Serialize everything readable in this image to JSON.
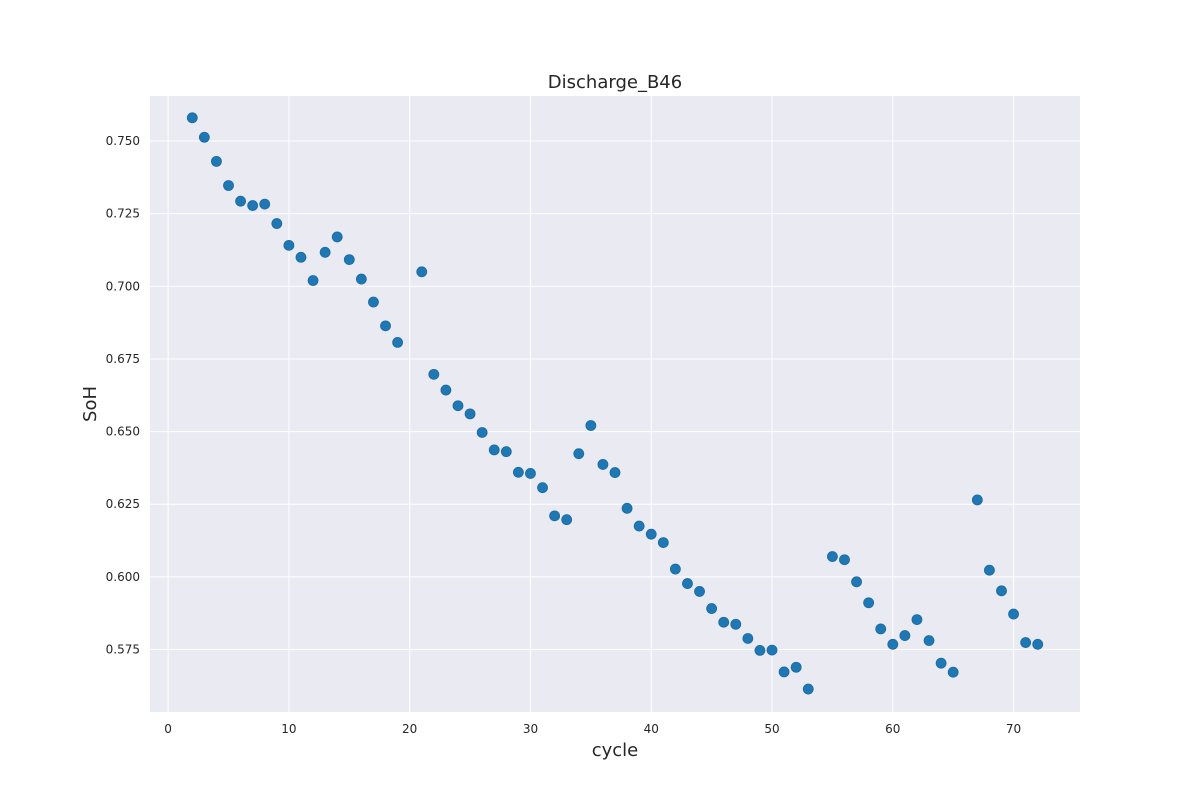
{
  "chart_data": {
    "type": "scatter",
    "title": "Discharge_B46",
    "xlabel": "cycle",
    "ylabel": "SoH",
    "xlim": [
      -1.5,
      75.5
    ],
    "ylim": [
      0.5535,
      0.7655
    ],
    "xticks": [
      0,
      10,
      20,
      30,
      40,
      50,
      60,
      70
    ],
    "yticks": [
      0.575,
      0.6,
      0.625,
      0.65,
      0.675,
      0.7,
      0.725,
      0.75
    ],
    "ytick_labels": [
      "0.575",
      "0.600",
      "0.625",
      "0.650",
      "0.675",
      "0.700",
      "0.725",
      "0.750"
    ],
    "grid": true,
    "background": "#eaeaf2",
    "point_color": "#1f77b4",
    "series": [
      {
        "x": [
          2,
          3,
          4,
          5,
          6,
          7,
          8,
          9,
          10,
          11,
          12,
          13,
          14,
          15,
          16,
          17,
          18,
          19,
          21,
          22,
          23,
          24,
          25,
          26,
          27,
          28,
          29,
          30,
          31,
          32,
          33,
          34,
          35,
          36,
          37,
          38,
          39,
          40,
          41,
          42,
          43,
          44,
          45,
          46,
          47,
          48,
          49,
          50,
          51,
          52,
          53,
          55,
          56,
          57,
          58,
          59,
          60,
          61,
          62,
          63,
          64,
          65,
          67,
          68,
          69,
          70,
          71,
          72
        ],
        "y": [
          0.758,
          0.7513,
          0.743,
          0.7347,
          0.7293,
          0.7278,
          0.7283,
          0.7216,
          0.7141,
          0.71,
          0.702,
          0.7117,
          0.717,
          0.7092,
          0.7025,
          0.6946,
          0.6864,
          0.6807,
          0.705,
          0.6697,
          0.6643,
          0.6589,
          0.6561,
          0.6497,
          0.6437,
          0.6431,
          0.636,
          0.6356,
          0.6307,
          0.621,
          0.6197,
          0.6424,
          0.6521,
          0.6387,
          0.6359,
          0.6236,
          0.6175,
          0.6147,
          0.6118,
          0.6027,
          0.5977,
          0.595,
          0.5891,
          0.5844,
          0.5837,
          0.5788,
          0.5747,
          0.5748,
          0.5673,
          0.5689,
          0.5614,
          0.607,
          0.6059,
          0.5983,
          0.5911,
          0.5821,
          0.5768,
          0.5798,
          0.5853,
          0.5781,
          0.5703,
          0.5672,
          0.6265,
          0.6023,
          0.5952,
          0.5872,
          0.5774,
          0.5768
        ]
      }
    ]
  }
}
